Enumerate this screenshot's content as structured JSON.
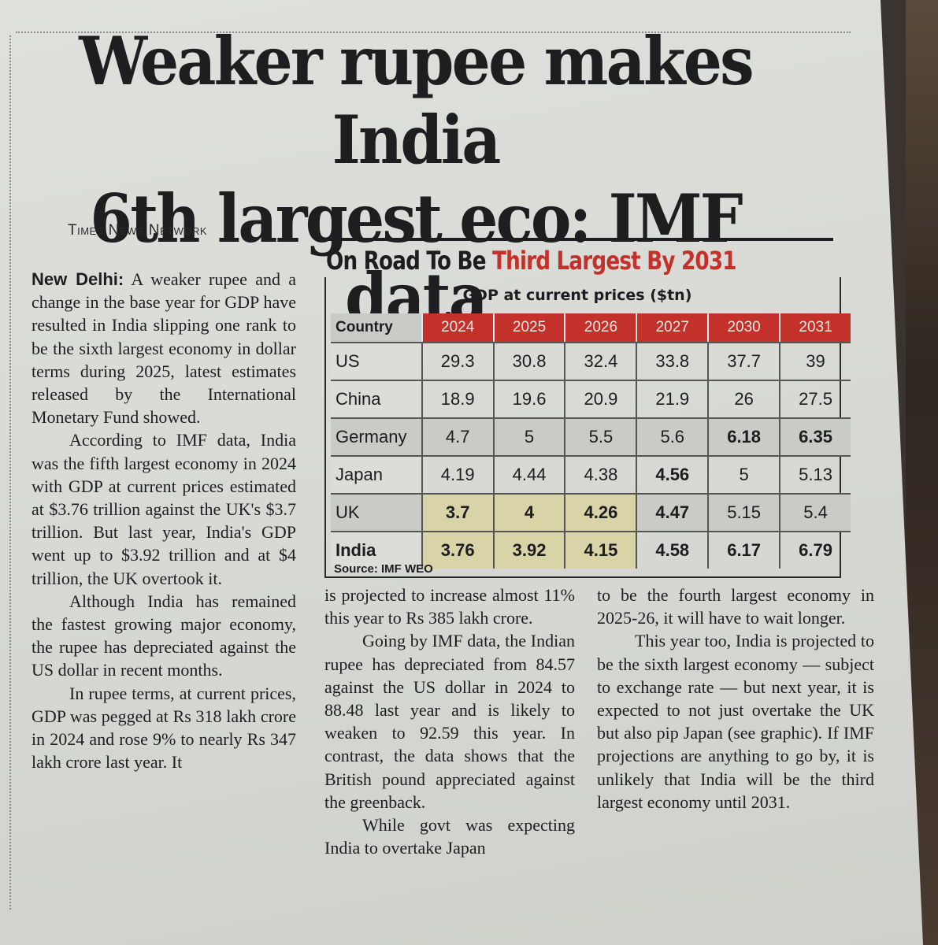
{
  "headline": {
    "line1": "Weaker rupee makes India",
    "line2": "6th largest eco: IMF data"
  },
  "byline": "Times News Network",
  "graphic": {
    "title_black": "On Road To Be ",
    "title_red": "Third Largest By 2031",
    "subtitle": "GDP at current prices ($tn)",
    "source": "Source: IMF WEO"
  },
  "chart_data": {
    "type": "table",
    "title": "On Road To Be Third Largest By 2031",
    "subtitle": "GDP at current prices ($tn)",
    "columns": [
      "Country",
      "2024",
      "2025",
      "2026",
      "2027",
      "2030",
      "2031"
    ],
    "rows": [
      [
        "US",
        "29.3",
        "30.8",
        "32.4",
        "33.8",
        "37.7",
        "39"
      ],
      [
        "China",
        "18.9",
        "19.6",
        "20.9",
        "21.9",
        "26",
        "27.5"
      ],
      [
        "Germany",
        "4.7",
        "5",
        "5.5",
        "5.6",
        "6.18",
        "6.35"
      ],
      [
        "Japan",
        "4.19",
        "4.44",
        "4.38",
        "4.56",
        "5",
        "5.13"
      ],
      [
        "UK",
        "3.7",
        "4",
        "4.26",
        "4.47",
        "5.15",
        "5.4"
      ],
      [
        "India",
        "3.76",
        "3.92",
        "4.15",
        "4.58",
        "6.17",
        "6.79"
      ]
    ],
    "source": "Source: IMF WEO",
    "colors": {
      "header_bg": "#c4302a",
      "highlight": "#d9d3a8"
    }
  },
  "article": {
    "col1": [
      {
        "dateline": "New Delhi:",
        "text": " A weaker rupee and a change in the base year for GDP have resulted in India slipping one rank to be the sixth largest economy in dollar terms during 2025, latest estimates released by the International Monetary Fund showed."
      },
      {
        "text": "According to IMF data, India was the fifth largest economy in 2024 with GDP at current prices estimated at $3.76 trillion against the UK's $3.7 trillion. But last year, India's GDP went up to $3.92 trillion and at $4 trillion, the UK overtook it."
      },
      {
        "text": "Although India has remained the fastest growing major economy, the rupee has depreciated against the US dollar in recent months."
      },
      {
        "text": "In rupee terms, at current prices, GDP was pegged at Rs 318 lakh crore in 2024 and rose 9% to nearly Rs 347 lakh crore last year. It"
      }
    ],
    "col2": [
      {
        "text": "is projected to increase almost 11% this year to Rs 385 lakh crore."
      },
      {
        "text": "Going by IMF data, the Indian rupee has depreciated from 84.57 against the US dollar in 2024 to 88.48 last year and is likely to weaken to 92.59 this year. In contrast, the data shows that the British pound appreciated against the greenback."
      },
      {
        "text": "While govt was expecting India to overtake Japan"
      }
    ],
    "col3": [
      {
        "text": "to be the fourth largest economy in 2025-26, it will have to wait longer."
      },
      {
        "text": "This year too, India is projected to be the sixth largest economy — subject to exchange rate — but next year, it is expected to not just overtake the UK but also pip Japan (see graphic). If IMF projections are anything to go by, it is unlikely that India will be the third largest economy until 2031."
      }
    ]
  }
}
